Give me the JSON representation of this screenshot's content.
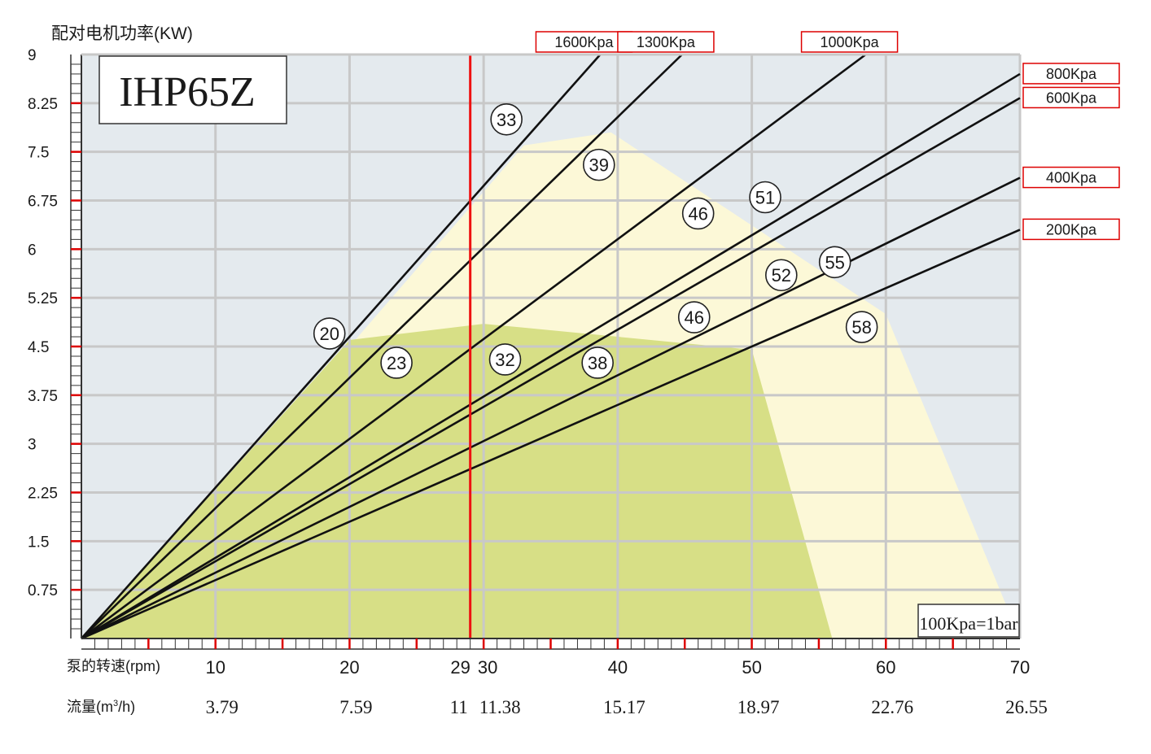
{
  "chart_data": {
    "type": "line",
    "title": "IHP65Z",
    "ylabel": "配对电机功率(KW)",
    "xlabel": "泵的转速(rpm)",
    "flow_label_prefix": "流量(m",
    "flow_label_sup": "3",
    "flow_label_suffix": "/h)",
    "note": "100Kpa=1bar",
    "xlim": [
      0,
      70
    ],
    "ylim": [
      0,
      9
    ],
    "y_ticks": [
      "9",
      "8.25",
      "7.5",
      "6.75",
      "6",
      "5.25",
      "4.5",
      "3.75",
      "3",
      "2.25",
      "1.5",
      "0.75"
    ],
    "y_tick_values": [
      9,
      8.25,
      7.5,
      6.75,
      6,
      5.25,
      4.5,
      3.75,
      3,
      2.25,
      1.5,
      0.75
    ],
    "x_ticks": [
      {
        "x": 10,
        "rpm": "10",
        "flow": "3.79"
      },
      {
        "x": 20,
        "rpm": "20",
        "flow": "7.59"
      },
      {
        "x": 29,
        "rpm": "29",
        "flow": "11"
      },
      {
        "x": 30,
        "rpm": "30",
        "flow": "11.38"
      },
      {
        "x": 40,
        "rpm": "40",
        "flow": "15.17"
      },
      {
        "x": 50,
        "rpm": "50",
        "flow": "18.97"
      },
      {
        "x": 60,
        "rpm": "60",
        "flow": "22.76"
      },
      {
        "x": 70,
        "rpm": "70",
        "flow": "26.55"
      }
    ],
    "marker_line_x": 29,
    "series": [
      {
        "name": "1600Kpa",
        "x": [
          0,
          38.7
        ],
        "y": [
          0,
          9.0
        ]
      },
      {
        "name": "1300Kpa",
        "x": [
          0,
          44.8
        ],
        "y": [
          0,
          9.0
        ]
      },
      {
        "name": "1000Kpa",
        "x": [
          0,
          58.5
        ],
        "y": [
          0,
          9.0
        ]
      },
      {
        "name": "800Kpa",
        "x": [
          0,
          70
        ],
        "y": [
          0,
          8.7
        ]
      },
      {
        "name": "600Kpa",
        "x": [
          0,
          70
        ],
        "y": [
          0,
          8.33
        ]
      },
      {
        "name": "400Kpa",
        "x": [
          0,
          70
        ],
        "y": [
          0,
          7.1
        ]
      },
      {
        "name": "200Kpa",
        "x": [
          0,
          70
        ],
        "y": [
          0,
          6.3
        ]
      }
    ],
    "regions": [
      {
        "name": "light-zone",
        "color": "#fcf8d7",
        "x": [
          0,
          20,
          33,
          39.5,
          60,
          69,
          70,
          70,
          0
        ],
        "y": [
          0,
          4.5,
          7.6,
          7.8,
          5.0,
          0.5,
          0.2,
          0,
          0
        ]
      },
      {
        "name": "green-zone",
        "color": "#d7df86",
        "x": [
          0,
          20,
          30,
          50,
          56,
          0
        ],
        "y": [
          0,
          4.6,
          4.85,
          4.45,
          0,
          0
        ]
      }
    ],
    "annotations": [
      {
        "text": "33",
        "x": 31.7,
        "y": 8.0
      },
      {
        "text": "39",
        "x": 38.6,
        "y": 7.3
      },
      {
        "text": "51",
        "x": 51.0,
        "y": 6.8
      },
      {
        "text": "46",
        "x": 46.0,
        "y": 6.55
      },
      {
        "text": "55",
        "x": 56.2,
        "y": 5.8
      },
      {
        "text": "52",
        "x": 52.2,
        "y": 5.6
      },
      {
        "text": "20",
        "x": 18.5,
        "y": 4.7
      },
      {
        "text": "23",
        "x": 23.5,
        "y": 4.25
      },
      {
        "text": "32",
        "x": 31.6,
        "y": 4.3
      },
      {
        "text": "46",
        "x": 45.7,
        "y": 4.95
      },
      {
        "text": "58",
        "x": 58.2,
        "y": 4.8
      },
      {
        "text": "38",
        "x": 38.5,
        "y": 4.25
      }
    ],
    "colors": {
      "background": "#e4eaee",
      "grid": "#c8c8c8",
      "marker_line": "#e11",
      "tick_red": "#d00",
      "series_line": "#111111",
      "label_border": "#d00"
    }
  }
}
